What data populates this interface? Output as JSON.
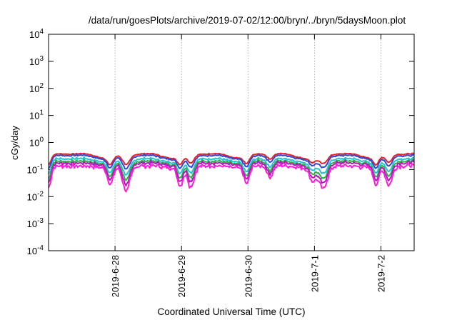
{
  "chart_data": {
    "type": "line",
    "title": "/data/run/goesPlots/archive/2019-07-02/12:00/bryn/../bryn/5daysMoon.plot",
    "xlabel": "Coordinated Universal Time (UTC)",
    "ylabel": "cGy/day",
    "yscale": "log",
    "ylim": [
      0.0001,
      10000
    ],
    "xlim": [
      0,
      5.5
    ],
    "grid": true,
    "grid_axis": "x",
    "yticks": [
      {
        "value": 0.0001,
        "base": "10",
        "exp": "-4"
      },
      {
        "value": 0.001,
        "base": "10",
        "exp": "-3"
      },
      {
        "value": 0.01,
        "base": "10",
        "exp": "-2"
      },
      {
        "value": 0.1,
        "base": "10",
        "exp": "-1"
      },
      {
        "value": 1,
        "base": "10",
        "exp": "0"
      },
      {
        "value": 10,
        "base": "10",
        "exp": "1"
      },
      {
        "value": 100,
        "base": "10",
        "exp": "2"
      },
      {
        "value": 1000,
        "base": "10",
        "exp": "3"
      },
      {
        "value": 10000,
        "base": "10",
        "exp": "4"
      }
    ],
    "xticks": [
      {
        "value": 1,
        "label": "2019-6-28"
      },
      {
        "value": 2,
        "label": "2019-6-29"
      },
      {
        "value": 3,
        "label": "2019-6-30"
      },
      {
        "value": 4,
        "label": "2019-7-1"
      },
      {
        "value": 5,
        "label": "2019-7-2"
      }
    ],
    "series": [
      {
        "color": "#e8202a",
        "level": 0.34
      },
      {
        "color": "#2f49d6",
        "level": 0.3
      },
      {
        "color": "#27c1d4",
        "level": 0.23
      },
      {
        "color": "#2bb24a",
        "level": 0.19
      },
      {
        "color": "#b01bb8",
        "level": 0.165
      },
      {
        "color": "#ff1bdc",
        "level": 0.13
      }
    ],
    "dips": [
      {
        "x": 0.0,
        "depth": 0.55,
        "width": 0.05
      },
      {
        "x": 0.93,
        "depth": 0.45,
        "width": 0.06
      },
      {
        "x": 1.17,
        "depth": 0.65,
        "width": 0.08
      },
      {
        "x": 1.98,
        "depth": 0.5,
        "width": 0.06
      },
      {
        "x": 2.14,
        "depth": 0.55,
        "width": 0.07
      },
      {
        "x": 2.98,
        "depth": 0.45,
        "width": 0.06
      },
      {
        "x": 3.33,
        "depth": 0.3,
        "width": 0.06
      },
      {
        "x": 3.97,
        "depth": 0.35,
        "width": 0.07
      },
      {
        "x": 4.13,
        "depth": 0.6,
        "width": 0.09
      },
      {
        "x": 4.93,
        "depth": 0.45,
        "width": 0.06
      },
      {
        "x": 5.12,
        "depth": 0.5,
        "width": 0.07
      }
    ]
  }
}
